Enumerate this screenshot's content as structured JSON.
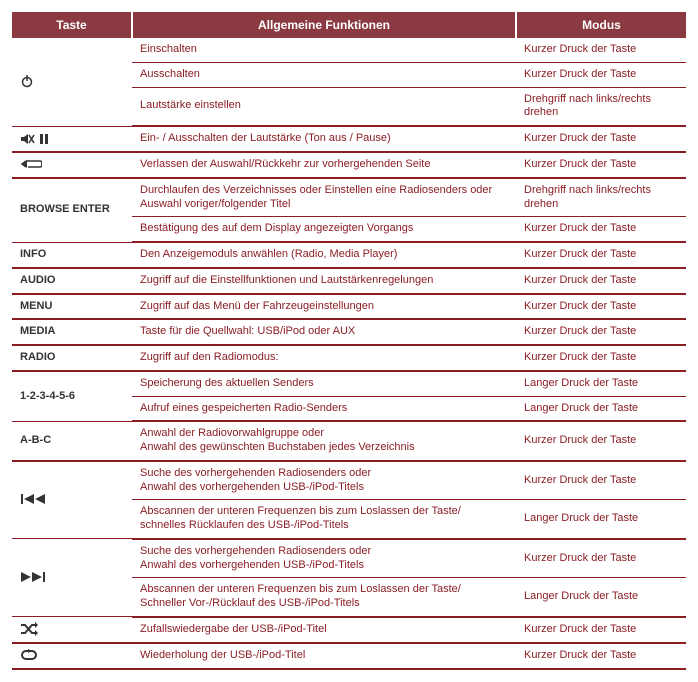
{
  "header": {
    "col1": "Taste",
    "col2": "Allgemeine Funktionen",
    "col3": "Modus"
  },
  "colors": {
    "text": "#8a1e24",
    "header_bg": "#8a3a40",
    "header_fg": "#ffffff",
    "key_text": "#333333",
    "rule": "#8a1e24"
  },
  "groups": [
    {
      "key_type": "icon",
      "icon": "power",
      "key_text": "",
      "rows": [
        {
          "func": "Einschalten",
          "mode": "Kurzer Druck der Taste"
        },
        {
          "func": "Ausschalten",
          "mode": "Kurzer Druck der Taste"
        },
        {
          "func": "Lautstärke einstellen",
          "mode": "Drehgriff nach links/rechts drehen"
        }
      ]
    },
    {
      "key_type": "icon",
      "icon": "mute-pause",
      "rows": [
        {
          "func": "Ein- / Ausschalten der Lautstärke (Ton aus / Pause)",
          "mode": "Kurzer Druck der Taste"
        }
      ]
    },
    {
      "key_type": "icon",
      "icon": "back",
      "rows": [
        {
          "func": "Verlassen der Auswahl/Rückkehr zur vorhergehenden Seite",
          "mode": "Kurzer Druck der Taste"
        }
      ]
    },
    {
      "key_type": "text",
      "key_text": "BROWSE ENTER",
      "rows": [
        {
          "func": "Durchlaufen des Verzeichnisses oder Einstellen eine Radiosenders oder Auswahl voriger/folgender Titel",
          "mode": "Drehgriff nach links/rechts drehen"
        },
        {
          "func": "Bestätigung des auf dem Display angezeigten Vorgangs",
          "mode": "Kurzer Druck der Taste"
        }
      ]
    },
    {
      "key_type": "text",
      "key_text": "INFO",
      "rows": [
        {
          "func": "Den Anzeigemoduls anwählen (Radio, Media Player)",
          "mode": "Kurzer Druck der Taste"
        }
      ]
    },
    {
      "key_type": "text",
      "key_text": "AUDIO",
      "rows": [
        {
          "func": "Zugriff auf die Einstellfunktionen und Lautstärkenregelungen",
          "mode": "Kurzer Druck der Taste"
        }
      ]
    },
    {
      "key_type": "text",
      "key_text": "MENU",
      "rows": [
        {
          "func": "Zugriff auf das Menü der Fahrzeugeinstellungen",
          "mode": "Kurzer Druck der Taste"
        }
      ]
    },
    {
      "key_type": "text",
      "key_text": "MEDIA",
      "rows": [
        {
          "func": "Taste für die Quellwahl: USB/iPod oder AUX",
          "mode": "Kurzer Druck der Taste"
        }
      ]
    },
    {
      "key_type": "text",
      "key_text": "RADIO",
      "rows": [
        {
          "func": "Zugriff auf den Radiomodus:",
          "mode": "Kurzer Druck der Taste"
        }
      ]
    },
    {
      "key_type": "text",
      "key_text": "1-2-3-4-5-6",
      "rows": [
        {
          "func": "Speicherung des aktuellen Senders",
          "mode": "Langer Druck der Taste"
        },
        {
          "func": "Aufruf eines gespeicherten Radio-Senders",
          "mode": "Langer Druck der Taste"
        }
      ]
    },
    {
      "key_type": "text",
      "key_text": "A-B-C",
      "rows": [
        {
          "func": "Anwahl der Radiovorwahlgruppe oder\nAnwahl des gewünschten Buchstaben jedes Verzeichnis",
          "mode": "Kurzer Druck der Taste"
        }
      ]
    },
    {
      "key_type": "icon",
      "icon": "seek-back",
      "rows": [
        {
          "func": "Suche des vorhergehenden Radiosenders oder\nAnwahl des vorhergehenden USB-/iPod-Titels",
          "mode": "Kurzer Druck der Taste"
        },
        {
          "func": "Abscannen der unteren Frequenzen bis zum Loslassen der Taste/\nschnelles Rücklaufen des USB-/iPod-Titels",
          "mode": "Langer Druck der Taste"
        }
      ]
    },
    {
      "key_type": "icon",
      "icon": "seek-fwd",
      "rows": [
        {
          "func": "Suche des vorhergehenden Radiosenders oder\nAnwahl des vorhergehenden USB-/iPod-Titels",
          "mode": "Kurzer Druck der Taste"
        },
        {
          "func": "Abscannen der unteren Frequenzen bis zum Loslassen der Taste/\nSchneller Vor-/Rücklauf des USB-/iPod-Titels",
          "mode": "Langer Druck der Taste"
        }
      ]
    },
    {
      "key_type": "icon",
      "icon": "shuffle",
      "rows": [
        {
          "func": "Zufallswiedergabe der USB-/iPod-Titel",
          "mode": "Kurzer Druck der Taste"
        }
      ]
    },
    {
      "key_type": "icon",
      "icon": "repeat",
      "rows": [
        {
          "func": "Wiederholung der USB-/iPod-Titel",
          "mode": "Kurzer Druck der Taste"
        }
      ]
    }
  ]
}
